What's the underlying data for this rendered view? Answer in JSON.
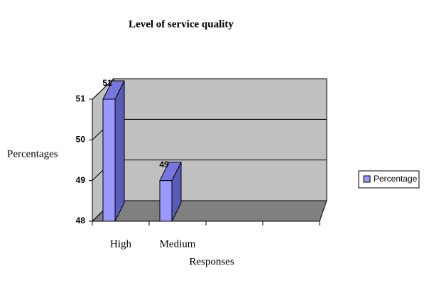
{
  "chart_data": {
    "type": "bar3d",
    "title": "Level of service quality",
    "x_label": "Responses",
    "y_label": "Percentages",
    "categories": [
      "High",
      "Medium",
      null,
      null
    ],
    "series": [
      {
        "name": "Percentage",
        "color": "#9999ff",
        "values": [
          51,
          49,
          null,
          null
        ]
      }
    ],
    "ylim": [
      48,
      51
    ],
    "yticks": [
      48,
      49,
      50,
      51
    ],
    "grid": true,
    "legend": "right"
  }
}
